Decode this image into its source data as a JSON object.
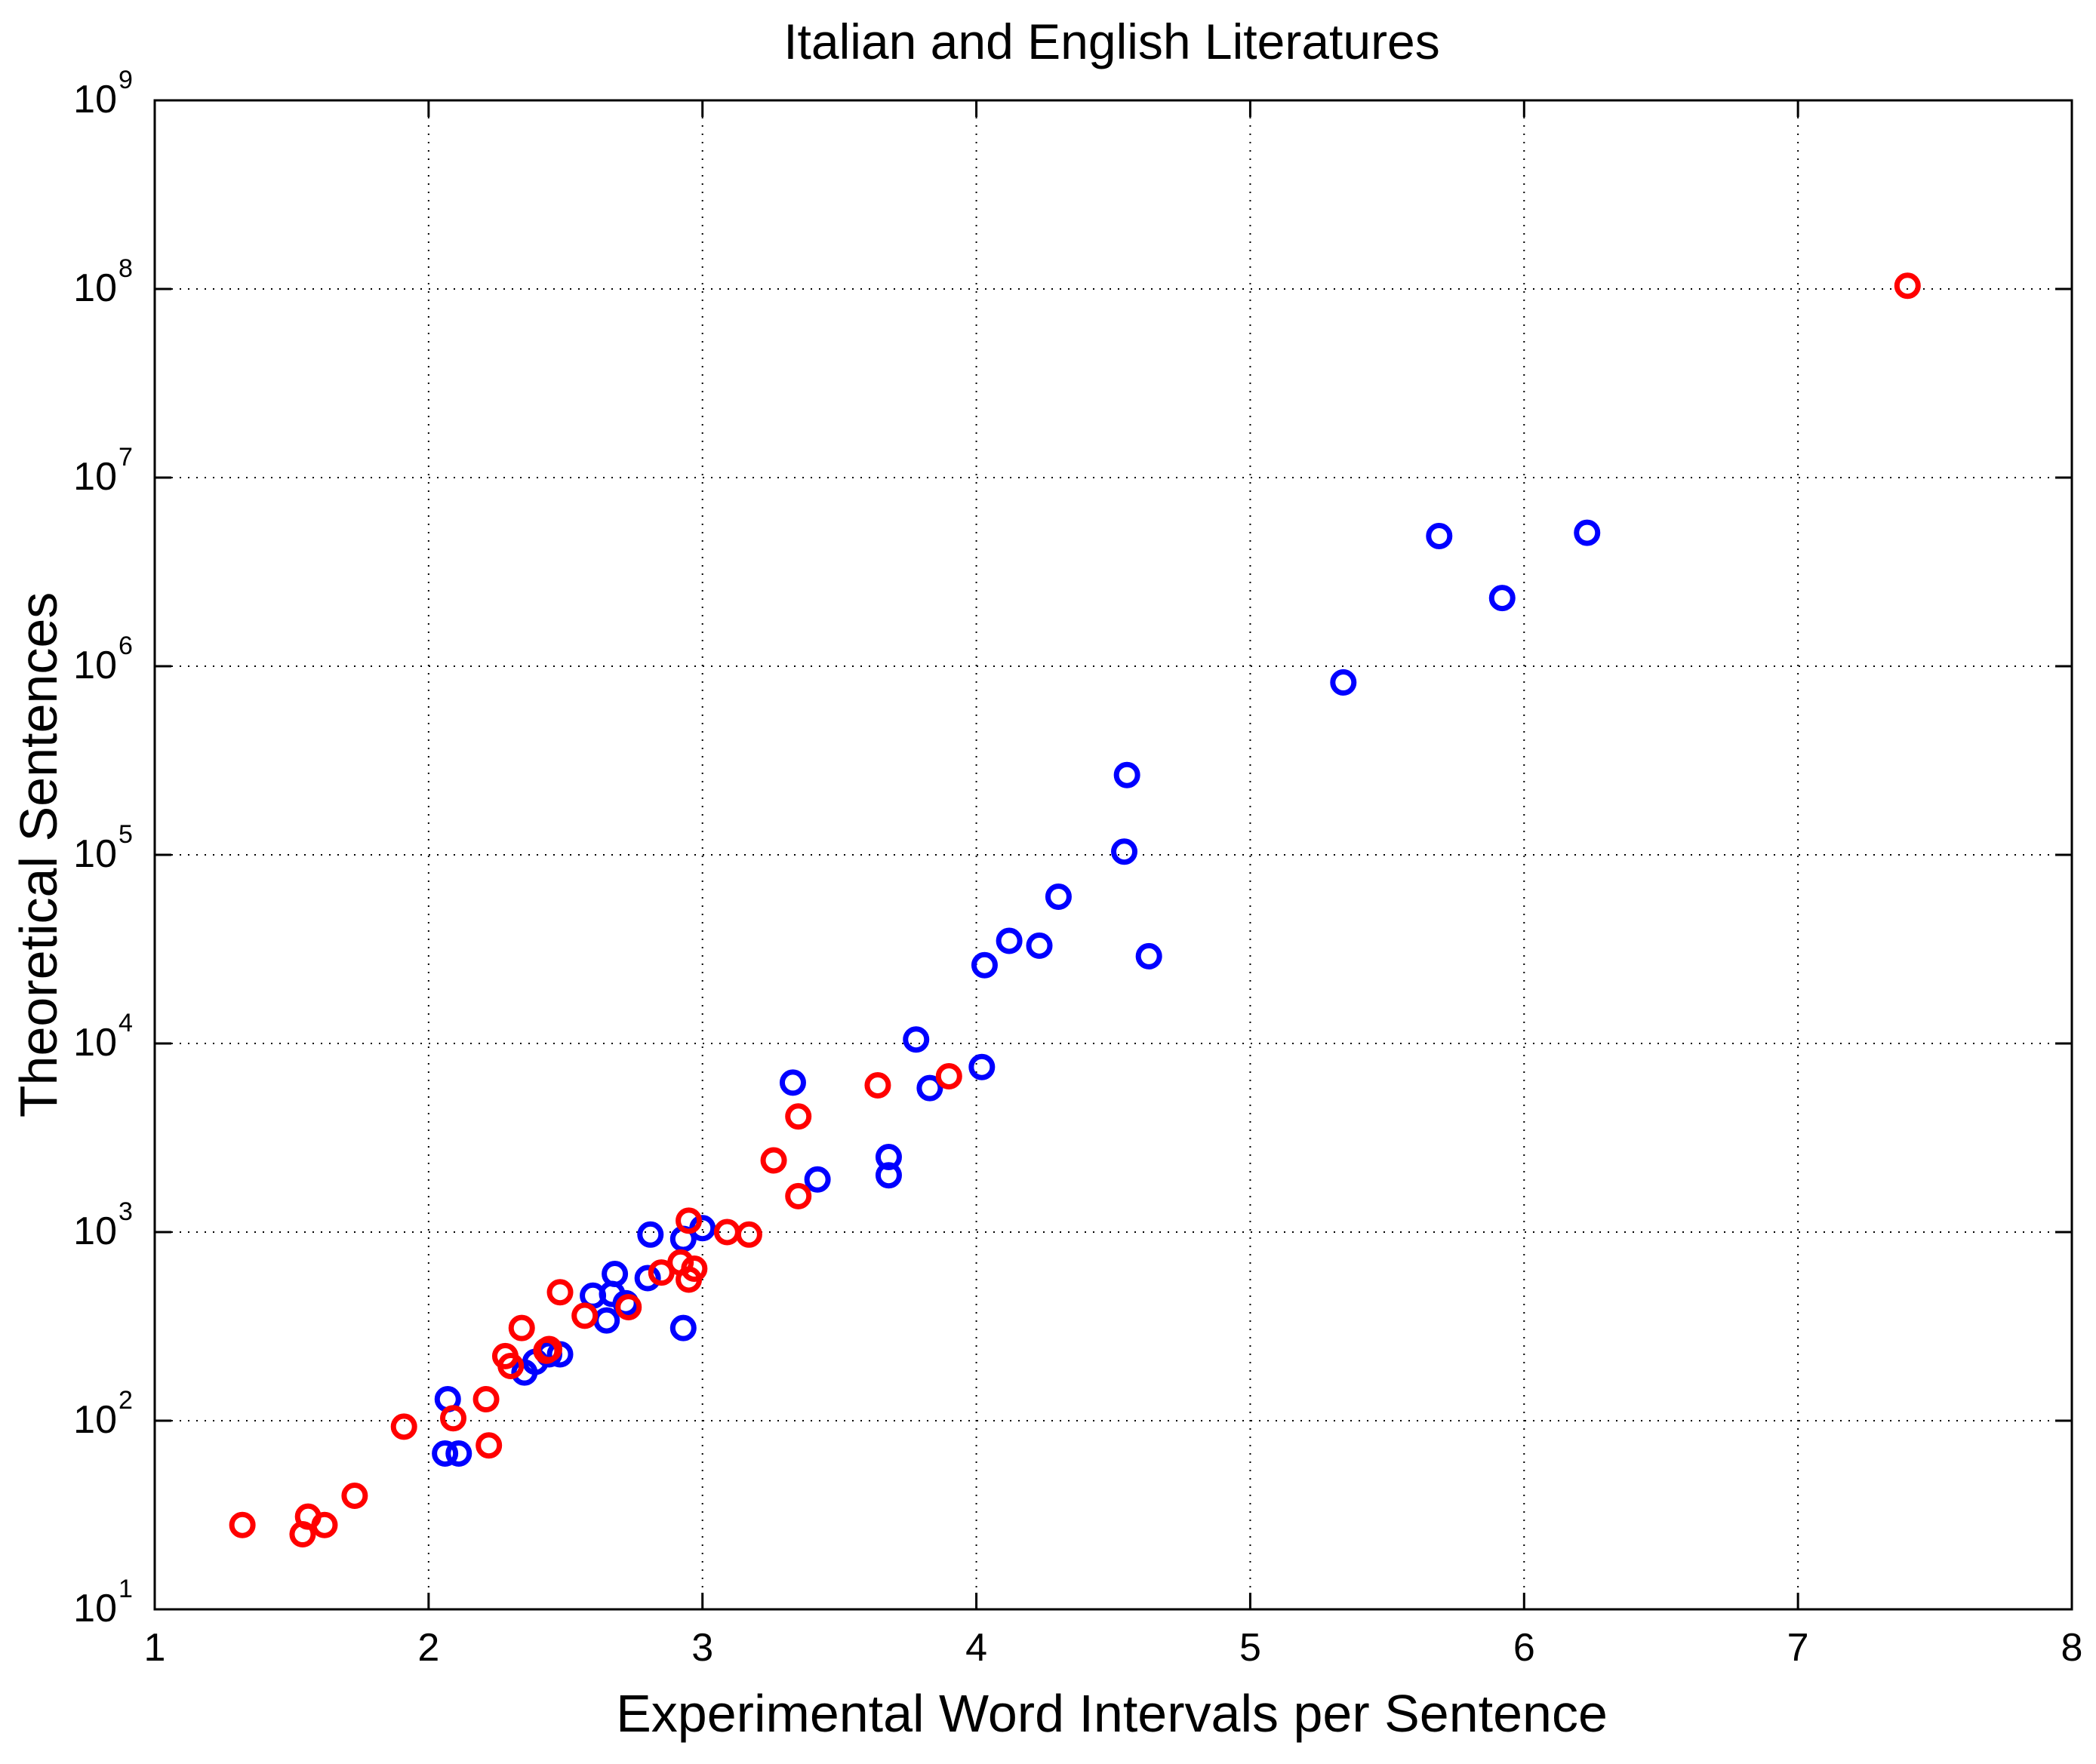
{
  "chart_data": {
    "type": "scatter",
    "title": "Italian and English Literatures",
    "xlabel": "Experimental Word Intervals per Sentence",
    "ylabel": "Theoretical Sentences",
    "xlim": [
      1,
      8
    ],
    "ylim": [
      10,
      1000000000
    ],
    "yscale": "log",
    "grid": true,
    "marker": "open-circle",
    "x_ticks": [
      "1",
      "2",
      "3",
      "4",
      "5",
      "6",
      "7",
      "8"
    ],
    "y_ticks": [
      {
        "base": "10",
        "exp": "1"
      },
      {
        "base": "10",
        "exp": "2"
      },
      {
        "base": "10",
        "exp": "3"
      },
      {
        "base": "10",
        "exp": "4"
      },
      {
        "base": "10",
        "exp": "5"
      },
      {
        "base": "10",
        "exp": "6"
      },
      {
        "base": "10",
        "exp": "7"
      },
      {
        "base": "10",
        "exp": "8"
      },
      {
        "base": "10",
        "exp": "9"
      }
    ],
    "series": [
      {
        "color": "#0000ff",
        "points": [
          [
            2.07,
            130
          ],
          [
            2.06,
            67
          ],
          [
            2.11,
            67
          ],
          [
            2.35,
            180
          ],
          [
            2.39,
            205
          ],
          [
            2.44,
            225
          ],
          [
            2.48,
            225
          ],
          [
            2.6,
            460
          ],
          [
            2.65,
            340
          ],
          [
            2.67,
            470
          ],
          [
            2.68,
            600
          ],
          [
            2.72,
            420
          ],
          [
            2.8,
            570
          ],
          [
            2.81,
            970
          ],
          [
            2.93,
            920
          ],
          [
            2.93,
            310
          ],
          [
            3.0,
            1050
          ],
          [
            3.33,
            6200
          ],
          [
            3.42,
            1900
          ],
          [
            3.68,
            2500
          ],
          [
            3.68,
            2000
          ],
          [
            3.78,
            10500
          ],
          [
            3.83,
            5800
          ],
          [
            4.02,
            7500
          ],
          [
            4.03,
            26000
          ],
          [
            4.12,
            35000
          ],
          [
            4.23,
            33000
          ],
          [
            4.3,
            60000
          ],
          [
            4.54,
            104000
          ],
          [
            4.55,
            265000
          ],
          [
            4.63,
            29000
          ],
          [
            5.34,
            820000
          ],
          [
            5.69,
            4900000
          ],
          [
            5.92,
            2300000
          ],
          [
            6.23,
            5100000
          ]
        ]
      },
      {
        "color": "#ff0000",
        "points": [
          [
            1.32,
            28
          ],
          [
            1.54,
            25
          ],
          [
            1.56,
            31
          ],
          [
            1.62,
            28
          ],
          [
            1.73,
            40
          ],
          [
            1.91,
            93
          ],
          [
            2.09,
            103
          ],
          [
            2.21,
            130
          ],
          [
            2.22,
            74
          ],
          [
            2.28,
            220
          ],
          [
            2.3,
            195
          ],
          [
            2.34,
            310
          ],
          [
            2.43,
            235
          ],
          [
            2.44,
            240
          ],
          [
            2.48,
            480
          ],
          [
            2.57,
            360
          ],
          [
            2.73,
            400
          ],
          [
            2.85,
            610
          ],
          [
            2.92,
            690
          ],
          [
            2.95,
            560
          ],
          [
            2.95,
            1150
          ],
          [
            2.97,
            640
          ],
          [
            3.09,
            1000
          ],
          [
            3.17,
            970
          ],
          [
            3.26,
            2400
          ],
          [
            3.35,
            4100
          ],
          [
            3.35,
            1550
          ],
          [
            3.64,
            6000
          ],
          [
            3.9,
            6700
          ],
          [
            7.4,
            104000000
          ]
        ]
      }
    ]
  }
}
